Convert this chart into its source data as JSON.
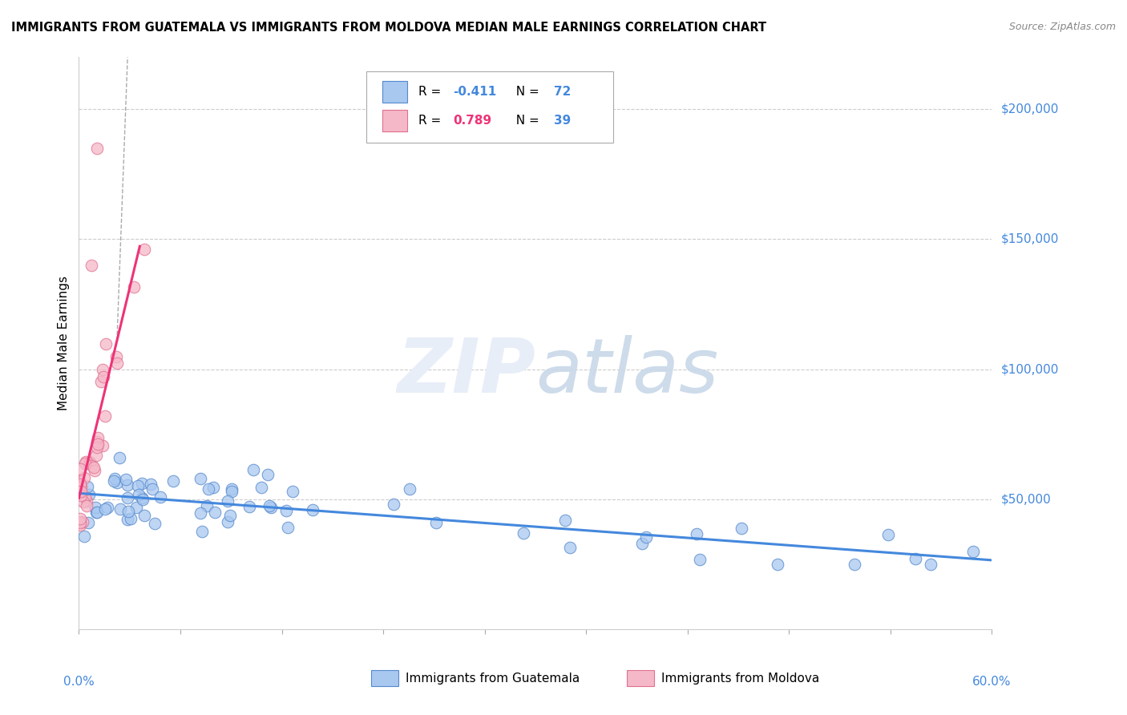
{
  "title": "IMMIGRANTS FROM GUATEMALA VS IMMIGRANTS FROM MOLDOVA MEDIAN MALE EARNINGS CORRELATION CHART",
  "source": "Source: ZipAtlas.com",
  "ylabel": "Median Male Earnings",
  "y_tick_values": [
    50000,
    100000,
    150000,
    200000
  ],
  "y_tick_labels": [
    "$50,000",
    "$100,000",
    "$150,000",
    "$200,000"
  ],
  "xlim": [
    0.0,
    0.6
  ],
  "ylim": [
    0,
    220000
  ],
  "scatter_blue_face": "#a8c8f0",
  "scatter_blue_edge": "#5588cc",
  "scatter_pink_face": "#f5b8c8",
  "scatter_pink_edge": "#e07090",
  "line_blue": "#4488dd",
  "line_pink": "#ee3377",
  "legend_r1_color": "#4488dd",
  "legend_r2_color": "#ee3377",
  "legend_n_color": "#4488dd",
  "watermark_color": "#e8eef8",
  "grid_color": "#cccccc",
  "background_color": "#ffffff",
  "axis_color": "#4488dd",
  "legend_entry1_label": "Immigrants from Guatemala",
  "legend_entry2_label": "Immigrants from Moldova",
  "legend_box_face": "#ffffff",
  "legend_box_edge": "#aaaaaa"
}
